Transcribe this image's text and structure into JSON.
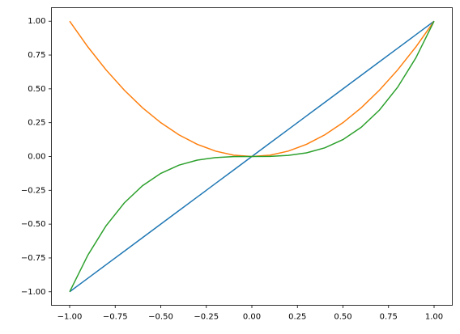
{
  "chart_data": {
    "type": "line",
    "x": [
      -1,
      -0.9,
      -0.8,
      -0.7,
      -0.6,
      -0.5,
      -0.4,
      -0.3,
      -0.2,
      -0.1,
      0,
      0.1,
      0.2,
      0.3,
      0.4,
      0.5,
      0.6,
      0.7,
      0.8,
      0.9,
      1
    ],
    "series": [
      {
        "color": "#1f77b4",
        "values": [
          -1,
          -0.9,
          -0.8,
          -0.7,
          -0.6,
          -0.5,
          -0.4,
          -0.3,
          -0.2,
          -0.1,
          0,
          0.1,
          0.2,
          0.3,
          0.4,
          0.5,
          0.6,
          0.7,
          0.8,
          0.9,
          1
        ]
      },
      {
        "color": "#ff7f0e",
        "values": [
          1,
          0.81,
          0.64,
          0.49,
          0.36,
          0.25,
          0.16,
          0.09,
          0.04,
          0.01,
          0,
          0.01,
          0.04,
          0.09,
          0.16,
          0.25,
          0.36,
          0.49,
          0.64,
          0.81,
          1
        ]
      },
      {
        "color": "#2ca02c",
        "values": [
          -1,
          -0.729,
          -0.512,
          -0.343,
          -0.216,
          -0.125,
          -0.064,
          -0.027,
          -0.008,
          -0.001,
          0,
          0.001,
          0.008,
          0.027,
          0.064,
          0.125,
          0.216,
          0.343,
          0.512,
          0.729,
          1
        ]
      }
    ],
    "xlim": [
      -1.1,
      1.1
    ],
    "ylim": [
      -1.1,
      1.1
    ],
    "xticks": [
      {
        "value": -1,
        "label": "−1.00"
      },
      {
        "value": -0.75,
        "label": "−0.75"
      },
      {
        "value": -0.5,
        "label": "−0.50"
      },
      {
        "value": -0.25,
        "label": "−0.25"
      },
      {
        "value": 0,
        "label": "0.00"
      },
      {
        "value": 0.25,
        "label": "0.25"
      },
      {
        "value": 0.5,
        "label": "0.50"
      },
      {
        "value": 0.75,
        "label": "0.75"
      },
      {
        "value": 1,
        "label": "1.00"
      }
    ],
    "yticks": [
      {
        "value": -1,
        "label": "−1.00"
      },
      {
        "value": -0.75,
        "label": "−0.75"
      },
      {
        "value": -0.5,
        "label": "−0.50"
      },
      {
        "value": -0.25,
        "label": "−0.25"
      },
      {
        "value": 0,
        "label": "0.00"
      },
      {
        "value": 0.25,
        "label": "0.25"
      },
      {
        "value": 0.5,
        "label": "0.50"
      },
      {
        "value": 0.75,
        "label": "0.75"
      },
      {
        "value": 1,
        "label": "1.00"
      }
    ]
  }
}
